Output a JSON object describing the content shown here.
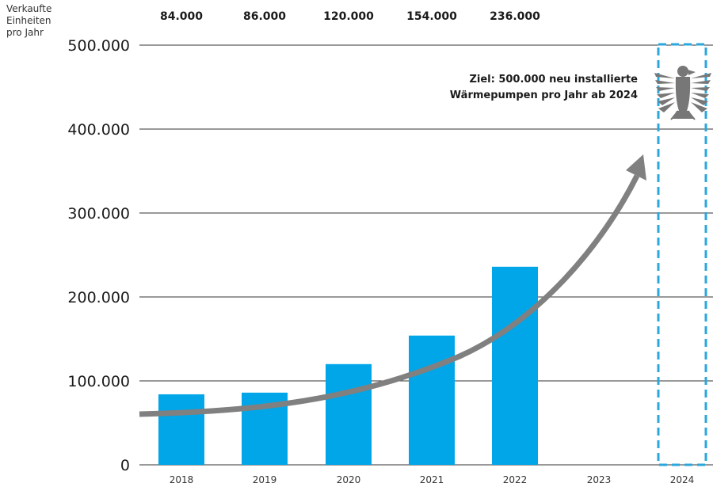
{
  "chart_data": {
    "type": "bar",
    "ylabel_lines": [
      "Verkaufte",
      "Einheiten",
      "pro Jahr"
    ],
    "categories": [
      "2018",
      "2019",
      "2020",
      "2021",
      "2022",
      "2023",
      "2024"
    ],
    "values": [
      84000,
      86000,
      120000,
      154000,
      236000,
      null,
      null
    ],
    "top_labels": [
      "84.000",
      "86.000",
      "120.000",
      "154.000",
      "236.000"
    ],
    "y_ticks": [
      0,
      100000,
      200000,
      300000,
      400000,
      500000
    ],
    "y_tick_labels": [
      "0",
      "100.000",
      "200.000",
      "300.000",
      "400.000",
      "500.000"
    ],
    "ylim": [
      0,
      500000
    ],
    "grid": true,
    "target": {
      "category": "2024",
      "value": 500000,
      "note_lines": [
        "Ziel: 500.000 neu installierte",
        "Wärmepumpen pro Jahr ab 2024"
      ]
    },
    "colors": {
      "bar": "#00a6e8",
      "target_outline": "#2aa7dc",
      "trend_arrow": "#808080",
      "grid": "#333333",
      "emblem": "#777777"
    },
    "icons": [
      "federal-eagle-icon",
      "trend-arrow-icon"
    ]
  }
}
